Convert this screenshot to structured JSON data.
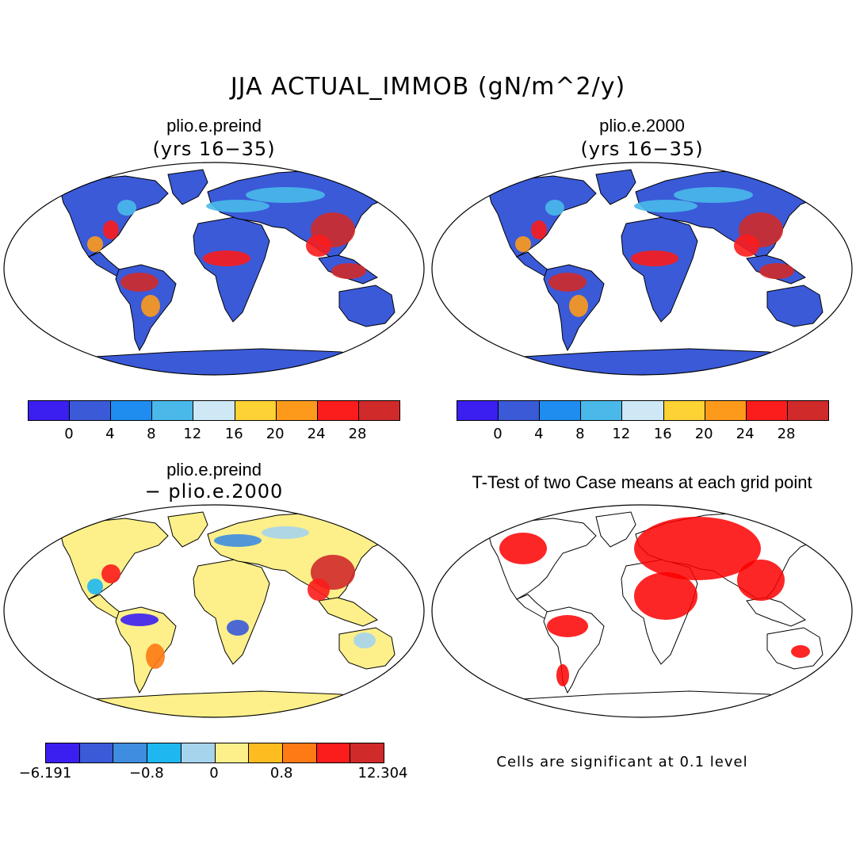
{
  "figure": {
    "title": "JJA ACTUAL_IMMOB (gN/m^2/y)"
  },
  "panels": [
    {
      "id": "p1",
      "title": "plio.e.preind",
      "subtitle": "(yrs 16−35)",
      "kind": "field"
    },
    {
      "id": "p2",
      "title": "plio.e.2000",
      "subtitle": "(yrs 16−35)",
      "kind": "field"
    },
    {
      "id": "p3",
      "title": "plio.e.preind",
      "subtitle": "− plio.e.2000",
      "kind": "difference"
    },
    {
      "id": "p4",
      "title": "T-Test of two Case means at each grid point",
      "kind": "significance"
    }
  ],
  "colorbars": {
    "field": {
      "colors": [
        "#3b1ff0",
        "#3a5ad8",
        "#1f8cf0",
        "#4ab9ea",
        "#cfe8f6",
        "#fdd234",
        "#fd9a1c",
        "#fb1c1c",
        "#d02a2a"
      ],
      "ticks": [
        "0",
        "4",
        "8",
        "12",
        "16",
        "20",
        "24",
        "28"
      ]
    },
    "difference": {
      "colors": [
        "#3b1ff0",
        "#3a5ad8",
        "#3e8de0",
        "#1eb7f0",
        "#a6d4ec",
        "#fdf08a",
        "#fdbd20",
        "#fd7a14",
        "#fb1c1c",
        "#d02a2a"
      ],
      "ticks": [
        "−6.191",
        "−0.8",
        "0",
        "0.8",
        "12.304"
      ]
    }
  },
  "significance": {
    "note": "Cells are significant at 0.1 level",
    "color": "#fb0000"
  },
  "colors": {
    "ocean": "#ffffff",
    "coast": "#000000",
    "ice": "#3a5ad8",
    "diff_land": "#fdf08a"
  }
}
